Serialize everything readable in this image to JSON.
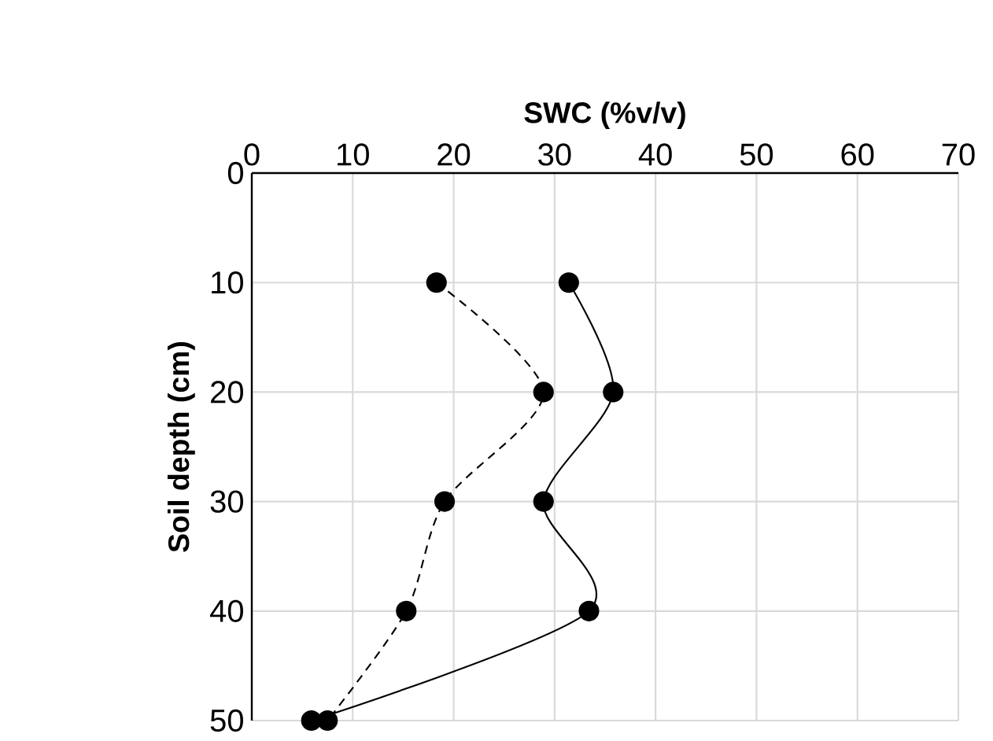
{
  "chart_data": {
    "type": "line",
    "xlabel": "SWC (%v/v)",
    "ylabel": "Soil depth (cm)",
    "xlim": [
      0,
      70
    ],
    "xticks": [
      0,
      10,
      20,
      30,
      40,
      50,
      60,
      70
    ],
    "ylim": [
      50,
      0
    ],
    "yticks": [
      0,
      10,
      20,
      30,
      40,
      50
    ],
    "grid": true,
    "marker": "circle",
    "series": [
      {
        "color": "#000000",
        "line_style": "solid",
        "x": [
          31.4,
          35.8,
          28.9,
          33.4,
          5.9
        ],
        "values": [
          10,
          20,
          30,
          40,
          50
        ]
      },
      {
        "color": "#000000",
        "line_style": "dashed",
        "x": [
          18.3,
          28.9,
          19.1,
          15.3,
          7.5
        ],
        "values": [
          10,
          20,
          30,
          40,
          50
        ]
      }
    ]
  }
}
